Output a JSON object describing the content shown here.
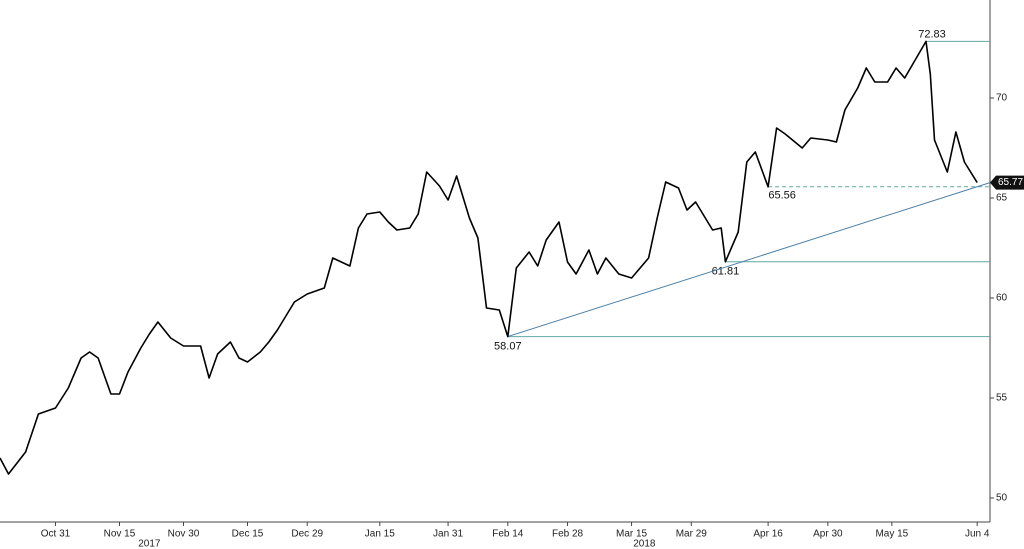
{
  "chart_data": {
    "type": "line",
    "xlim": [
      "2017-10-18",
      "2018-06-07"
    ],
    "ylim": [
      48.8,
      74.9
    ],
    "yticks": [
      50,
      55,
      60,
      65,
      70
    ],
    "xticks": [
      {
        "value": "2017-10-31",
        "label": "Oct 31"
      },
      {
        "value": "2017-11-15",
        "label": "Nov 15"
      },
      {
        "value": "2017-11-30",
        "label": "Nov 30"
      },
      {
        "value": "2017-12-15",
        "label": "Dec 15"
      },
      {
        "value": "2017-12-29",
        "label": "Dec 29"
      },
      {
        "value": "2018-01-15",
        "label": "Jan 15"
      },
      {
        "value": "2018-01-31",
        "label": "Jan 31"
      },
      {
        "value": "2018-02-14",
        "label": "Feb 14"
      },
      {
        "value": "2018-02-28",
        "label": "Feb 28"
      },
      {
        "value": "2018-03-15",
        "label": "Mar 15"
      },
      {
        "value": "2018-03-29",
        "label": "Mar 29"
      },
      {
        "value": "2018-04-16",
        "label": "Apr 16"
      },
      {
        "value": "2018-04-30",
        "label": "Apr 30"
      },
      {
        "value": "2018-05-15",
        "label": "May 15"
      },
      {
        "value": "2018-06-04",
        "label": "Jun 4"
      }
    ],
    "year_labels": [
      {
        "x": "2017-11-22",
        "label": "2017"
      },
      {
        "x": "2018-03-18",
        "label": "2018"
      }
    ],
    "series": [
      {
        "color": "#000000",
        "x": [
          "2017-10-18",
          "2017-10-20",
          "2017-10-24",
          "2017-10-27",
          "2017-10-31",
          "2017-11-03",
          "2017-11-06",
          "2017-11-08",
          "2017-11-10",
          "2017-11-13",
          "2017-11-15",
          "2017-11-17",
          "2017-11-20",
          "2017-11-22",
          "2017-11-24",
          "2017-11-27",
          "2017-11-30",
          "2017-12-04",
          "2017-12-06",
          "2017-12-08",
          "2017-12-11",
          "2017-12-13",
          "2017-12-15",
          "2017-12-18",
          "2017-12-20",
          "2017-12-22",
          "2017-12-26",
          "2017-12-29",
          "2018-01-02",
          "2018-01-04",
          "2018-01-08",
          "2018-01-10",
          "2018-01-12",
          "2018-01-15",
          "2018-01-17",
          "2018-01-19",
          "2018-01-22",
          "2018-01-24",
          "2018-01-26",
          "2018-01-29",
          "2018-01-31",
          "2018-02-02",
          "2018-02-05",
          "2018-02-07",
          "2018-02-09",
          "2018-02-12",
          "2018-02-14",
          "2018-02-16",
          "2018-02-19",
          "2018-02-21",
          "2018-02-23",
          "2018-02-26",
          "2018-02-28",
          "2018-03-02",
          "2018-03-05",
          "2018-03-07",
          "2018-03-09",
          "2018-03-12",
          "2018-03-15",
          "2018-03-19",
          "2018-03-21",
          "2018-03-23",
          "2018-03-26",
          "2018-03-28",
          "2018-03-30",
          "2018-04-03",
          "2018-04-05",
          "2018-04-06",
          "2018-04-09",
          "2018-04-11",
          "2018-04-13",
          "2018-04-16",
          "2018-04-18",
          "2018-04-20",
          "2018-04-24",
          "2018-04-26",
          "2018-04-30",
          "2018-05-02",
          "2018-05-04",
          "2018-05-07",
          "2018-05-09",
          "2018-05-11",
          "2018-05-14",
          "2018-05-16",
          "2018-05-18",
          "2018-05-21",
          "2018-05-23",
          "2018-05-24",
          "2018-05-25",
          "2018-05-28",
          "2018-05-30",
          "2018-06-01",
          "2018-06-04"
        ],
        "values": [
          52.0,
          51.2,
          52.3,
          54.2,
          54.5,
          55.5,
          57.0,
          57.3,
          57.0,
          55.2,
          55.2,
          56.3,
          57.5,
          58.2,
          58.8,
          58.0,
          57.6,
          57.6,
          56.0,
          57.2,
          57.8,
          57.0,
          56.8,
          57.3,
          57.8,
          58.4,
          59.8,
          60.2,
          60.5,
          62.0,
          61.6,
          63.5,
          64.2,
          64.3,
          63.8,
          63.4,
          63.5,
          64.2,
          66.3,
          65.6,
          64.9,
          66.1,
          64.0,
          63.0,
          59.5,
          59.4,
          58.07,
          61.5,
          62.3,
          61.6,
          62.9,
          63.8,
          61.8,
          61.2,
          62.4,
          61.2,
          62.0,
          61.2,
          61.0,
          62.0,
          64.0,
          65.8,
          65.5,
          64.4,
          64.8,
          63.4,
          63.5,
          61.81,
          63.3,
          66.8,
          67.3,
          65.56,
          68.5,
          68.2,
          67.5,
          68.0,
          67.9,
          67.8,
          69.4,
          70.5,
          71.5,
          70.8,
          70.8,
          71.5,
          71.0,
          72.1,
          72.83,
          71.2,
          67.9,
          66.3,
          68.3,
          66.8,
          65.77
        ]
      }
    ],
    "levels": [
      {
        "x": "2018-05-23",
        "value": 72.83
      },
      {
        "x": "2018-04-06",
        "value": 61.81
      },
      {
        "x": "2018-02-14",
        "value": 58.07
      }
    ],
    "dashed_level": {
      "x": "2018-04-16",
      "value": 65.56
    },
    "trendline": {
      "x": [
        "2018-02-14",
        "2018-06-07"
      ],
      "values": [
        58.07,
        65.77
      ]
    },
    "last_price": 65.77,
    "level_color": "#5fa8a0",
    "trend_color": "#4a7fa8"
  }
}
